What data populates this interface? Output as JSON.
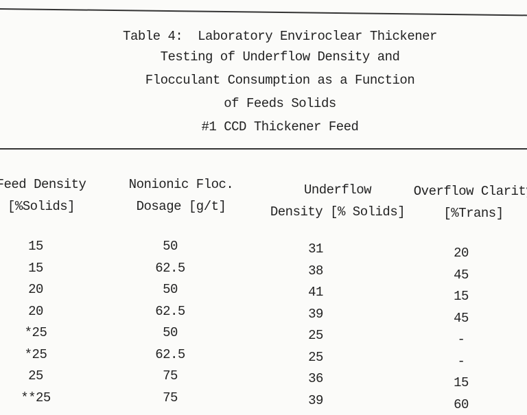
{
  "title": {
    "lines": [
      "Table 4:  Laboratory Enviroclear Thickener",
      "Testing of Underflow Density and",
      "Flocculant Consumption as a Function",
      "of Feeds Solids",
      "#1 CCD Thickener Feed"
    ]
  },
  "table": {
    "header": [
      [
        "Feed Density",
        "[%Solids]"
      ],
      [
        "Nonionic Floc.",
        "Dosage [g/t]"
      ],
      [
        "Underflow",
        "Density [% Solids]"
      ],
      [
        "Overflow Clarity",
        "[%Trans]"
      ]
    ],
    "rows": [
      [
        "15",
        "50",
        "31",
        "20"
      ],
      [
        "15",
        "62.5",
        "38",
        "45"
      ],
      [
        "20",
        "50",
        "41",
        "15"
      ],
      [
        "20",
        "62.5",
        "39",
        "45"
      ],
      [
        "*25",
        "50",
        "25",
        "-"
      ],
      [
        "*25",
        "62.5",
        "25",
        "-"
      ],
      [
        "25",
        "75",
        "36",
        "15"
      ],
      [
        "**25",
        "75",
        "39",
        "60"
      ]
    ]
  }
}
